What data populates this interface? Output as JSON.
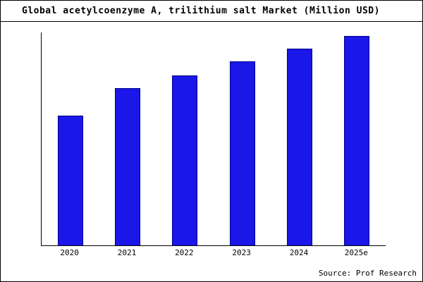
{
  "title": "Global acetylcoenzyme A, trilithium salt Market (Million USD)",
  "source": "Source: Prof Research",
  "colors": {
    "bar_fill": "#1a17e8",
    "bar_border": "#00008b",
    "axis": "#000000",
    "background": "#ffffff"
  },
  "chart_data": {
    "type": "bar",
    "title": "Global acetylcoenzyme A, trilithium salt Market (Million USD)",
    "categories": [
      "2020",
      "2021",
      "2022",
      "2023",
      "2024",
      "2025e"
    ],
    "values": [
      62,
      75,
      81,
      88,
      94,
      100
    ],
    "xlabel": "",
    "ylabel": "",
    "ylim": [
      0,
      105
    ],
    "grid": false,
    "legend": false,
    "y_axis_tick_labels_visible": false
  }
}
